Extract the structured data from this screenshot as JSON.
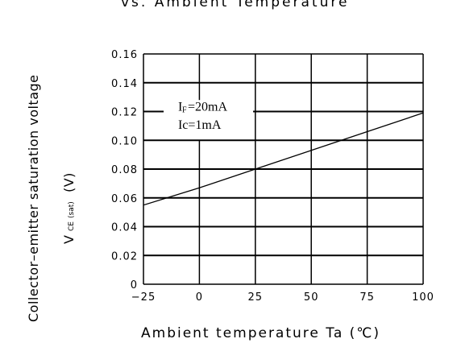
{
  "chart_data": {
    "type": "line",
    "title_partial": "vs.  Ambient  Temperature",
    "xlabel": "Ambient  temperature  Ta  (℃)",
    "ylabel_main": "Collector–emitter saturation voltage",
    "ylabel_symbol": "V",
    "ylabel_subscript_1": "CE",
    "ylabel_subscript_2": "(sat)",
    "ylabel_unit": "(V)",
    "xlim": [
      -25,
      100
    ],
    "ylim": [
      0,
      0.16
    ],
    "x_ticks": [
      -25,
      0,
      25,
      50,
      75,
      100
    ],
    "x_tick_labels": [
      "−25",
      "0",
      "25",
      "50",
      "75",
      "100"
    ],
    "y_ticks": [
      0,
      0.02,
      0.04,
      0.06,
      0.08,
      0.1,
      0.12,
      0.14,
      0.16
    ],
    "y_tick_labels": [
      "0",
      "0.02",
      "0.04",
      "0.06",
      "0.08",
      "0.10",
      "0.12",
      "0.14",
      "0.16"
    ],
    "grid": true,
    "series": [
      {
        "x": [
          -25,
          0,
          25,
          50,
          75,
          100
        ],
        "y": [
          0.055,
          0.067,
          0.08,
          0.093,
          0.106,
          0.119
        ]
      }
    ],
    "annotations": [
      {
        "main": "I",
        "sub": "F",
        "rest": "=20mA"
      },
      {
        "main": "Ic=1mA",
        "sub": "",
        "rest": ""
      }
    ],
    "line_color": "#000000",
    "grid_color": "#000000"
  }
}
